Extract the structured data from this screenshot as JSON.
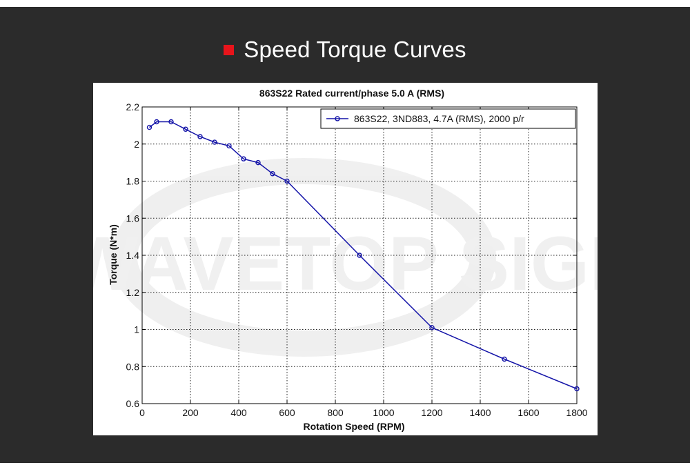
{
  "banner": {
    "title": "Speed Torque Curves",
    "accent_color": "#e8141b",
    "background_color": "#2b2b2b"
  },
  "watermark": "WAVETOP SIGN",
  "chart_data": {
    "type": "line",
    "title": "863S22 Rated current/phase 5.0 A (RMS)",
    "xlabel": "Rotation Speed (RPM)",
    "ylabel": "Torque (N*m)",
    "xlim": [
      0,
      1800
    ],
    "ylim": [
      0.6,
      2.2
    ],
    "xticks": [
      0,
      200,
      400,
      600,
      800,
      1000,
      1200,
      1400,
      1600,
      1800
    ],
    "xtick_labels": [
      "0",
      "200",
      "400",
      "600",
      "800",
      "1000",
      "1200",
      "1400",
      "1600",
      "1800"
    ],
    "yticks": [
      0.6,
      0.8,
      1.0,
      1.2,
      1.4,
      1.6,
      1.8,
      2.0,
      2.2
    ],
    "ytick_labels": [
      "0.6",
      "0.8",
      "1",
      "1.2",
      "1.4",
      "1.6",
      "1.8",
      "2",
      "2.2"
    ],
    "grid": true,
    "legend_position": "top-right",
    "series": [
      {
        "name": "863S22, 3ND883, 4.7A (RMS), 2000 p/r",
        "color": "#1414a8",
        "marker": "circle",
        "x": [
          30,
          60,
          120,
          180,
          240,
          300,
          360,
          420,
          480,
          540,
          600,
          900,
          1200,
          1500,
          1800
        ],
        "y": [
          2.09,
          2.12,
          2.12,
          2.08,
          2.04,
          2.01,
          1.99,
          1.92,
          1.9,
          1.84,
          1.8,
          1.4,
          1.01,
          0.84,
          0.68
        ]
      }
    ]
  }
}
